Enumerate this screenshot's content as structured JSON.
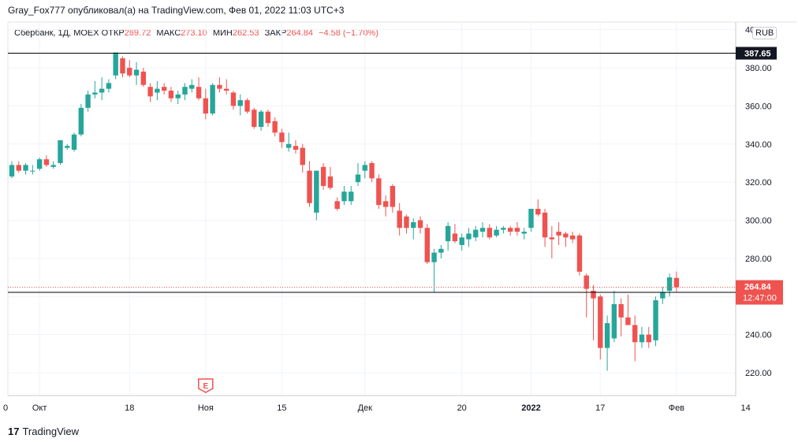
{
  "header": {
    "text": "Gray_Fox777 опубликовал(а) на TradingView.com, Фев 01, 2022 11:03 UTC+3"
  },
  "legend": {
    "symbol": "Сбербанк, 1Д, MOEX",
    "open_label": "ОТКР",
    "open": "269.72",
    "high_label": "МАКС",
    "high": "273.10",
    "low_label": "МИН",
    "low": "262.53",
    "close_label": "ЗАКР",
    "close": "264.84",
    "change": "−4.58 (−1.70%)"
  },
  "currency": "RUB",
  "footer": {
    "logo": "17",
    "brand": "TradingView"
  },
  "colors": {
    "up": "#26a69a",
    "down": "#ef5350",
    "line": "#000000",
    "price_label": "#ef5350"
  },
  "chart_data": {
    "type": "candlestick",
    "y_ticks": [
      "400.00",
      "380.00",
      "360.00",
      "340.00",
      "320.00",
      "300.00",
      "280.00",
      "260.00",
      "240.00",
      "220.00"
    ],
    "ylim": [
      208,
      404
    ],
    "x_ticks": [
      {
        "label": "0",
        "index": -6
      },
      {
        "label": "Окт",
        "index": 4
      },
      {
        "label": "18",
        "index": 17
      },
      {
        "label": "Ноя",
        "index": 28
      },
      {
        "label": "15",
        "index": 39
      },
      {
        "label": "Дек",
        "index": 51
      },
      {
        "label": "20",
        "index": 65
      },
      {
        "label": "2022",
        "index": 75
      },
      {
        "label": "17",
        "index": 85
      },
      {
        "label": "Фев",
        "index": 96
      },
      {
        "label": "14",
        "index": 106
      }
    ],
    "horizontal_lines": [
      {
        "value": 387.65,
        "label": "387.65"
      },
      {
        "value": 262.19,
        "label": "262.19"
      }
    ],
    "current_price": {
      "value": 264.84,
      "label": "264.84",
      "timer": "12:47:00"
    },
    "event_marker": {
      "label": "E",
      "index": 28
    },
    "candles": [
      {
        "o": 323,
        "h": 331,
        "l": 322,
        "c": 329
      },
      {
        "o": 329,
        "h": 331,
        "l": 325,
        "c": 326
      },
      {
        "o": 326,
        "h": 330,
        "l": 324,
        "c": 329
      },
      {
        "o": 326,
        "h": 329,
        "l": 324,
        "c": 326
      },
      {
        "o": 327,
        "h": 333,
        "l": 326,
        "c": 332
      },
      {
        "o": 332,
        "h": 334,
        "l": 328,
        "c": 329
      },
      {
        "o": 328,
        "h": 331,
        "l": 327,
        "c": 329
      },
      {
        "o": 330,
        "h": 342,
        "l": 329,
        "c": 342
      },
      {
        "o": 338,
        "h": 340,
        "l": 337,
        "c": 339
      },
      {
        "o": 337,
        "h": 346,
        "l": 336,
        "c": 345
      },
      {
        "o": 345,
        "h": 361,
        "l": 344,
        "c": 359
      },
      {
        "o": 359,
        "h": 368,
        "l": 357,
        "c": 366
      },
      {
        "o": 366,
        "h": 373,
        "l": 364,
        "c": 367
      },
      {
        "o": 367,
        "h": 375,
        "l": 363,
        "c": 369
      },
      {
        "o": 369,
        "h": 374,
        "l": 367,
        "c": 372
      },
      {
        "o": 376,
        "h": 388,
        "l": 374,
        "c": 388
      },
      {
        "o": 385,
        "h": 386,
        "l": 375,
        "c": 377
      },
      {
        "o": 380,
        "h": 384,
        "l": 375,
        "c": 376
      },
      {
        "o": 376,
        "h": 383,
        "l": 371,
        "c": 379
      },
      {
        "o": 378,
        "h": 380,
        "l": 370,
        "c": 371
      },
      {
        "o": 370,
        "h": 372,
        "l": 362,
        "c": 365
      },
      {
        "o": 367,
        "h": 373,
        "l": 363,
        "c": 369
      },
      {
        "o": 370,
        "h": 372,
        "l": 366,
        "c": 368
      },
      {
        "o": 368,
        "h": 370,
        "l": 362,
        "c": 364
      },
      {
        "o": 364,
        "h": 368,
        "l": 361,
        "c": 366
      },
      {
        "o": 366,
        "h": 372,
        "l": 363,
        "c": 370
      },
      {
        "o": 369,
        "h": 374,
        "l": 367,
        "c": 371
      },
      {
        "o": 370,
        "h": 375,
        "l": 363,
        "c": 364
      },
      {
        "o": 364,
        "h": 369,
        "l": 353,
        "c": 356
      },
      {
        "o": 356,
        "h": 372,
        "l": 355,
        "c": 371
      },
      {
        "o": 371,
        "h": 375,
        "l": 367,
        "c": 369
      },
      {
        "o": 369,
        "h": 374,
        "l": 366,
        "c": 368
      },
      {
        "o": 367,
        "h": 368,
        "l": 358,
        "c": 360
      },
      {
        "o": 360,
        "h": 366,
        "l": 355,
        "c": 363
      },
      {
        "o": 363,
        "h": 364,
        "l": 356,
        "c": 357
      },
      {
        "o": 358,
        "h": 359,
        "l": 348,
        "c": 349
      },
      {
        "o": 349,
        "h": 358,
        "l": 347,
        "c": 357
      },
      {
        "o": 357,
        "h": 358,
        "l": 349,
        "c": 351
      },
      {
        "o": 352,
        "h": 354,
        "l": 344,
        "c": 346
      },
      {
        "o": 346,
        "h": 348,
        "l": 338,
        "c": 341
      },
      {
        "o": 338,
        "h": 346,
        "l": 336,
        "c": 340
      },
      {
        "o": 339,
        "h": 342,
        "l": 335,
        "c": 337
      },
      {
        "o": 338,
        "h": 340,
        "l": 325,
        "c": 329
      },
      {
        "o": 326,
        "h": 331,
        "l": 307,
        "c": 309
      },
      {
        "o": 304,
        "h": 326,
        "l": 300,
        "c": 326
      },
      {
        "o": 328,
        "h": 330,
        "l": 316,
        "c": 318
      },
      {
        "o": 323,
        "h": 328,
        "l": 316,
        "c": 317
      },
      {
        "o": 310,
        "h": 312,
        "l": 305,
        "c": 306
      },
      {
        "o": 310,
        "h": 318,
        "l": 308,
        "c": 315
      },
      {
        "o": 310,
        "h": 318,
        "l": 308,
        "c": 315
      },
      {
        "o": 320,
        "h": 330,
        "l": 318,
        "c": 324
      },
      {
        "o": 326,
        "h": 331,
        "l": 322,
        "c": 329
      },
      {
        "o": 330,
        "h": 331,
        "l": 320,
        "c": 322
      },
      {
        "o": 322,
        "h": 324,
        "l": 306,
        "c": 308
      },
      {
        "o": 310,
        "h": 313,
        "l": 302,
        "c": 307
      },
      {
        "o": 318,
        "h": 319,
        "l": 304,
        "c": 307
      },
      {
        "o": 305,
        "h": 309,
        "l": 292,
        "c": 296
      },
      {
        "o": 302,
        "h": 303,
        "l": 293,
        "c": 296
      },
      {
        "o": 296,
        "h": 301,
        "l": 290,
        "c": 299
      },
      {
        "o": 300,
        "h": 302,
        "l": 293,
        "c": 296
      },
      {
        "o": 296,
        "h": 298,
        "l": 277,
        "c": 278
      },
      {
        "o": 278,
        "h": 285,
        "l": 262,
        "c": 283
      },
      {
        "o": 283,
        "h": 287,
        "l": 280,
        "c": 285
      },
      {
        "o": 289,
        "h": 299,
        "l": 284,
        "c": 297
      },
      {
        "o": 293,
        "h": 298,
        "l": 288,
        "c": 289
      },
      {
        "o": 287,
        "h": 293,
        "l": 284,
        "c": 291
      },
      {
        "o": 290,
        "h": 296,
        "l": 286,
        "c": 293
      },
      {
        "o": 291,
        "h": 297,
        "l": 289,
        "c": 295
      },
      {
        "o": 294,
        "h": 299,
        "l": 291,
        "c": 296
      },
      {
        "o": 296,
        "h": 298,
        "l": 290,
        "c": 291
      },
      {
        "o": 292,
        "h": 297,
        "l": 291,
        "c": 295
      },
      {
        "o": 295,
        "h": 297,
        "l": 293,
        "c": 296
      },
      {
        "o": 296,
        "h": 297,
        "l": 292,
        "c": 294
      },
      {
        "o": 296,
        "h": 299,
        "l": 292,
        "c": 294
      },
      {
        "o": 293,
        "h": 296,
        "l": 290,
        "c": 294
      },
      {
        "o": 296,
        "h": 306,
        "l": 294,
        "c": 306
      },
      {
        "o": 306,
        "h": 311,
        "l": 302,
        "c": 303
      },
      {
        "o": 304,
        "h": 306,
        "l": 286,
        "c": 291
      },
      {
        "o": 291,
        "h": 297,
        "l": 280,
        "c": 290
      },
      {
        "o": 294,
        "h": 299,
        "l": 287,
        "c": 292
      },
      {
        "o": 293,
        "h": 294,
        "l": 286,
        "c": 291
      },
      {
        "o": 292,
        "h": 294,
        "l": 288,
        "c": 290
      },
      {
        "o": 292,
        "h": 293,
        "l": 271,
        "c": 273
      },
      {
        "o": 271,
        "h": 272,
        "l": 249,
        "c": 264
      },
      {
        "o": 263,
        "h": 266,
        "l": 237,
        "c": 259
      },
      {
        "o": 260,
        "h": 261,
        "l": 227,
        "c": 233
      },
      {
        "o": 233,
        "h": 250,
        "l": 221,
        "c": 246
      },
      {
        "o": 238,
        "h": 263,
        "l": 236,
        "c": 256
      },
      {
        "o": 256,
        "h": 259,
        "l": 239,
        "c": 249
      },
      {
        "o": 249,
        "h": 261,
        "l": 245,
        "c": 245
      },
      {
        "o": 245,
        "h": 250,
        "l": 226,
        "c": 236
      },
      {
        "o": 236,
        "h": 244,
        "l": 233,
        "c": 240
      },
      {
        "o": 240,
        "h": 244,
        "l": 233,
        "c": 236
      },
      {
        "o": 237,
        "h": 260,
        "l": 234,
        "c": 258
      },
      {
        "o": 259,
        "h": 265,
        "l": 256,
        "c": 262
      },
      {
        "o": 263,
        "h": 272,
        "l": 260,
        "c": 270
      },
      {
        "o": 269.72,
        "h": 273.1,
        "l": 262.53,
        "c": 264.84
      }
    ]
  }
}
